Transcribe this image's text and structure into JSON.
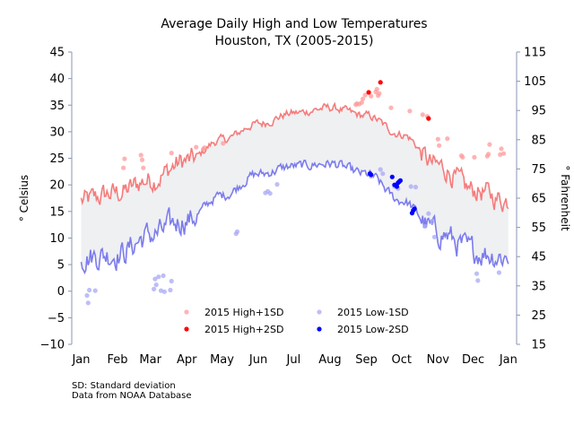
{
  "chart_data": {
    "type": "line",
    "title": "Average Daily High and Low Temperatures",
    "subtitle": "Houston, TX (2005-2015)",
    "ylabel": "$^\\circ$Celsius",
    "ylabel_left": "° Celsius",
    "ylabel_right": "° Fahrenheit",
    "xlabel": "",
    "ylim": [
      -10,
      45
    ],
    "ylim_right": [
      15,
      115
    ],
    "yticks_left": [
      "−10",
      "−5",
      "0",
      "5",
      "10",
      "15",
      "20",
      "25",
      "30",
      "35",
      "40",
      "45"
    ],
    "yticks_right": [
      "15",
      "25",
      "35",
      "45",
      "55",
      "65",
      "75",
      "85",
      "95",
      "105",
      "115"
    ],
    "xticks": [
      "Jan",
      "Feb",
      "Mar",
      "Apr",
      "May",
      "Jun",
      "Jul",
      "Aug",
      "Sep",
      "Oct",
      "Nov",
      "Dec",
      "Jan"
    ],
    "xlim_days": [
      -7,
      372
    ],
    "grid": false,
    "fill_between": "light gray band between daily average high and daily average low",
    "colors": {
      "high_line": "#f47c7c",
      "low_line": "#7c7cee",
      "band": "#eff0f2",
      "high_1sd": "#ff9a9a",
      "high_2sd": "#ff0000",
      "low_1sd": "#a8a8f5",
      "low_2sd": "#0000ff"
    },
    "series": [
      {
        "name": "Average daily high",
        "kind": "line",
        "monthly_points": [
          [
            1,
            17
          ],
          [
            32,
            18.5
          ],
          [
            60,
            21
          ],
          [
            91,
            24.5
          ],
          [
            121,
            28.5
          ],
          [
            152,
            31.5
          ],
          [
            182,
            33.5
          ],
          [
            213,
            34.5
          ],
          [
            244,
            33
          ],
          [
            274,
            29.5
          ],
          [
            305,
            23.5
          ],
          [
            335,
            19
          ],
          [
            365,
            17
          ]
        ]
      },
      {
        "name": "Average daily low",
        "kind": "line",
        "monthly_points": [
          [
            1,
            6.5
          ],
          [
            32,
            7
          ],
          [
            60,
            10.5
          ],
          [
            91,
            13.5
          ],
          [
            121,
            18
          ],
          [
            152,
            22
          ],
          [
            182,
            23.5
          ],
          [
            213,
            24
          ],
          [
            244,
            22
          ],
          [
            274,
            17
          ],
          [
            305,
            11
          ],
          [
            335,
            7.5
          ],
          [
            365,
            6.5
          ]
        ]
      },
      {
        "name": "2015 High+1SD",
        "kind": "scatter",
        "points": [
          [
            37,
            23.2
          ],
          [
            38,
            24.9
          ],
          [
            52,
            25.6
          ],
          [
            53,
            24.7
          ],
          [
            54,
            23.2
          ],
          [
            78,
            26
          ],
          [
            99,
            27.1
          ],
          [
            105,
            26.7
          ],
          [
            106,
            27.0
          ],
          [
            122,
            27.8
          ],
          [
            235,
            35.1
          ],
          [
            236,
            35.3
          ],
          [
            238,
            35.2
          ],
          [
            240,
            35.5
          ],
          [
            241,
            36.2
          ],
          [
            243,
            36.9
          ],
          [
            248,
            36.7
          ],
          [
            252,
            37.5
          ],
          [
            253,
            38.0
          ],
          [
            254,
            36.8
          ],
          [
            255,
            37.2
          ],
          [
            265,
            34.5
          ],
          [
            281,
            33.9
          ],
          [
            292,
            33.2
          ],
          [
            296,
            32.9
          ],
          [
            305,
            28.6
          ],
          [
            306,
            27.4
          ],
          [
            313,
            28.7
          ],
          [
            325,
            25.5
          ],
          [
            326,
            25.2
          ],
          [
            336,
            25.2
          ],
          [
            347,
            25.4
          ],
          [
            348,
            25.8
          ],
          [
            349,
            27.6
          ],
          [
            358,
            25.7
          ],
          [
            359,
            26.8
          ],
          [
            361,
            25.9
          ]
        ]
      },
      {
        "name": "2015 High+2SD",
        "kind": "scatter",
        "points": [
          [
            246,
            37.4
          ],
          [
            256,
            39.3
          ],
          [
            297,
            32.5
          ]
        ]
      },
      {
        "name": "2015 Low-1SD",
        "kind": "scatter",
        "points": [
          [
            6,
            -0.8
          ],
          [
            7,
            -2.2
          ],
          [
            8,
            0.2
          ],
          [
            13,
            0.1
          ],
          [
            63,
            0.4
          ],
          [
            64,
            2.3
          ],
          [
            65,
            1.2
          ],
          [
            67,
            2.7
          ],
          [
            69,
            0.1
          ],
          [
            71,
            2.9
          ],
          [
            72,
            -0.1
          ],
          [
            77,
            0.2
          ],
          [
            78,
            1.9
          ],
          [
            133,
            10.8
          ],
          [
            134,
            11.2
          ],
          [
            158,
            18.5
          ],
          [
            160,
            18.8
          ],
          [
            162,
            18.4
          ],
          [
            168,
            20.1
          ],
          [
            248,
            21.6
          ],
          [
            256,
            22.9
          ],
          [
            258,
            22.1
          ],
          [
            268,
            19.7
          ],
          [
            271,
            19.3
          ],
          [
            282,
            19.7
          ],
          [
            286,
            19.6
          ],
          [
            294,
            12.2
          ],
          [
            297,
            14.6
          ],
          [
            300,
            13.1
          ],
          [
            302,
            10.2
          ],
          [
            338,
            3.3
          ],
          [
            339,
            2.0
          ],
          [
            357,
            3.5
          ]
        ]
      },
      {
        "name": "2015 Low-2SD",
        "kind": "scatter",
        "points": [
          [
            247,
            22.1
          ],
          [
            248,
            21.9
          ],
          [
            266,
            21.5
          ],
          [
            268,
            20.0
          ],
          [
            270,
            19.7
          ],
          [
            271,
            20.4
          ],
          [
            272,
            20.6
          ],
          [
            273,
            20.8
          ],
          [
            283,
            14.7
          ],
          [
            284,
            15.2
          ],
          [
            285,
            15.5
          ]
        ]
      }
    ],
    "legend": {
      "placement": "lower-center",
      "entries": [
        "2015 High+1SD",
        "2015 Low-1SD",
        "2015 High+2SD",
        "2015 Low-2SD"
      ]
    },
    "annotations": [
      "SD: Standard deviation",
      "Data from NOAA Database"
    ]
  }
}
